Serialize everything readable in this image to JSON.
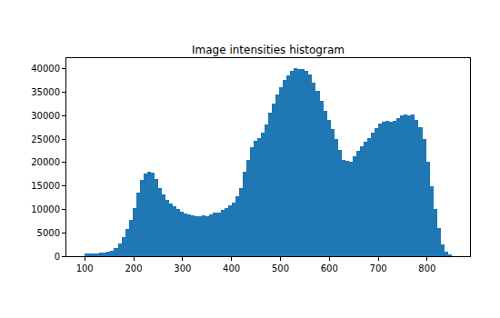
{
  "chart_data": {
    "type": "histogram",
    "title": "Image intensities histogram",
    "color": "#1f77b4",
    "bins": [
      100,
      107.5,
      115,
      122.5,
      130,
      137.5,
      145,
      152.5,
      160,
      167.5,
      175,
      182.5,
      190,
      197.5,
      205,
      212.5,
      220,
      227.5,
      235,
      242.5,
      250,
      257.5,
      265,
      272.5,
      280,
      287.5,
      295,
      302.5,
      310,
      317.5,
      325,
      332.5,
      340,
      347.5,
      355,
      362.5,
      370,
      377.5,
      385,
      392.5,
      400,
      407.5,
      415,
      422.5,
      430,
      437.5,
      445,
      452.5,
      460,
      467.5,
      475,
      482.5,
      490,
      497.5,
      505,
      512.5,
      520,
      527.5,
      535,
      542.5,
      550,
      557.5,
      565,
      572.5,
      580,
      587.5,
      595,
      602.5,
      610,
      617.5,
      625,
      632.5,
      640,
      647.5,
      655,
      662.5,
      670,
      677.5,
      685,
      692.5,
      700,
      707.5,
      715,
      722.5,
      730,
      737.5,
      745,
      752.5,
      760,
      767.5,
      775,
      782.5,
      790,
      797.5,
      805,
      812.5,
      820,
      827.5,
      835,
      842.5,
      850
    ],
    "values": [
      600,
      600,
      650,
      650,
      700,
      800,
      900,
      1200,
      1800,
      2700,
      4000,
      5800,
      7800,
      10300,
      13500,
      16300,
      17600,
      18100,
      17900,
      16400,
      14500,
      13100,
      12000,
      11300,
      10600,
      10000,
      9500,
      9100,
      8900,
      8700,
      8500,
      8500,
      8700,
      8600,
      8900,
      9300,
      9400,
      9900,
      10300,
      10800,
      11500,
      12900,
      14600,
      18000,
      20600,
      23200,
      24700,
      25300,
      26300,
      28100,
      30600,
      32600,
      34600,
      36100,
      37700,
      38700,
      39500,
      40100,
      40000,
      39900,
      39600,
      38800,
      37000,
      35300,
      33200,
      31100,
      29100,
      27100,
      25100,
      22700,
      20500,
      20400,
      20200,
      21300,
      22500,
      23400,
      24500,
      25300,
      26300,
      27400,
      28300,
      28800,
      28900,
      28700,
      28900,
      29400,
      30100,
      30200,
      30100,
      30200,
      29100,
      27600,
      25100,
      20100,
      15000,
      10000,
      6100,
      2600,
      1000,
      300
    ],
    "xlim": [
      62.5,
      887.5
    ],
    "xticks": [
      100,
      200,
      300,
      400,
      500,
      600,
      700,
      800
    ],
    "ylim": [
      0,
      42300
    ],
    "yticks": [
      0,
      5000,
      10000,
      15000,
      20000,
      25000,
      30000,
      35000,
      40000
    ],
    "grid": false
  }
}
